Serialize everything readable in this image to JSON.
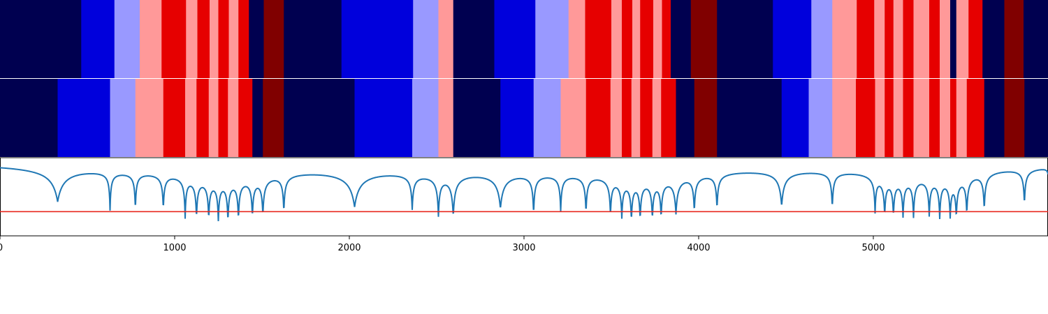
{
  "chart_data": {
    "type": "heatmap",
    "xlim": [
      0,
      6000
    ],
    "x_ticks": [
      0,
      1000,
      2000,
      3000,
      4000,
      5000
    ],
    "x_tick_labels": [
      "0",
      "1000",
      "2000",
      "3000",
      "4000",
      "5000"
    ],
    "level_colors": {
      "0": "#000050",
      "1": "#0000dc",
      "2": "#9999ff",
      "3": "#ff9999",
      "4": "#e60000",
      "5": "#800000"
    },
    "tracks": [
      {
        "segments": [
          [
            0,
            465,
            0
          ],
          [
            465,
            655,
            1
          ],
          [
            655,
            800,
            2
          ],
          [
            800,
            925,
            3
          ],
          [
            925,
            1065,
            4
          ],
          [
            1065,
            1130,
            3
          ],
          [
            1130,
            1200,
            4
          ],
          [
            1200,
            1250,
            3
          ],
          [
            1250,
            1310,
            4
          ],
          [
            1310,
            1365,
            3
          ],
          [
            1365,
            1425,
            4
          ],
          [
            1425,
            1510,
            0
          ],
          [
            1510,
            1625,
            5
          ],
          [
            1625,
            1955,
            0
          ],
          [
            1955,
            2365,
            1
          ],
          [
            2365,
            2510,
            2
          ],
          [
            2510,
            2595,
            3
          ],
          [
            2595,
            2830,
            0
          ],
          [
            2830,
            3065,
            1
          ],
          [
            3065,
            3255,
            2
          ],
          [
            3255,
            3350,
            3
          ],
          [
            3350,
            3500,
            4
          ],
          [
            3500,
            3560,
            3
          ],
          [
            3560,
            3620,
            4
          ],
          [
            3620,
            3665,
            3
          ],
          [
            3665,
            3740,
            4
          ],
          [
            3740,
            3790,
            3
          ],
          [
            3790,
            3840,
            4
          ],
          [
            3840,
            3955,
            0
          ],
          [
            3955,
            4105,
            5
          ],
          [
            4105,
            4425,
            0
          ],
          [
            4425,
            4645,
            1
          ],
          [
            4645,
            4765,
            2
          ],
          [
            4765,
            4905,
            3
          ],
          [
            4905,
            5005,
            4
          ],
          [
            5005,
            5065,
            3
          ],
          [
            5065,
            5115,
            4
          ],
          [
            5115,
            5170,
            3
          ],
          [
            5170,
            5230,
            4
          ],
          [
            5230,
            5320,
            3
          ],
          [
            5320,
            5380,
            4
          ],
          [
            5380,
            5440,
            3
          ],
          [
            5440,
            5475,
            0
          ],
          [
            5475,
            5545,
            3
          ],
          [
            5545,
            5625,
            4
          ],
          [
            5625,
            5750,
            0
          ],
          [
            5750,
            5860,
            5
          ],
          [
            5860,
            6000,
            0
          ]
        ]
      },
      {
        "segments": [
          [
            0,
            330,
            0
          ],
          [
            330,
            630,
            1
          ],
          [
            630,
            775,
            2
          ],
          [
            775,
            935,
            3
          ],
          [
            935,
            1060,
            4
          ],
          [
            1060,
            1125,
            3
          ],
          [
            1125,
            1195,
            4
          ],
          [
            1195,
            1250,
            3
          ],
          [
            1250,
            1305,
            4
          ],
          [
            1305,
            1365,
            3
          ],
          [
            1365,
            1445,
            4
          ],
          [
            1445,
            1505,
            0
          ],
          [
            1505,
            1625,
            5
          ],
          [
            1625,
            2030,
            0
          ],
          [
            2030,
            2360,
            1
          ],
          [
            2360,
            2510,
            2
          ],
          [
            2510,
            2595,
            3
          ],
          [
            2595,
            2865,
            0
          ],
          [
            2865,
            3055,
            1
          ],
          [
            3055,
            3210,
            2
          ],
          [
            3210,
            3355,
            3
          ],
          [
            3355,
            3495,
            4
          ],
          [
            3495,
            3560,
            3
          ],
          [
            3560,
            3615,
            4
          ],
          [
            3615,
            3665,
            3
          ],
          [
            3665,
            3735,
            4
          ],
          [
            3735,
            3785,
            3
          ],
          [
            3785,
            3870,
            4
          ],
          [
            3870,
            3975,
            0
          ],
          [
            3975,
            4105,
            5
          ],
          [
            4105,
            4475,
            0
          ],
          [
            4475,
            4630,
            1
          ],
          [
            4630,
            4765,
            2
          ],
          [
            4765,
            4900,
            3
          ],
          [
            4900,
            5010,
            4
          ],
          [
            5010,
            5065,
            3
          ],
          [
            5065,
            5115,
            4
          ],
          [
            5115,
            5170,
            3
          ],
          [
            5170,
            5230,
            4
          ],
          [
            5230,
            5320,
            3
          ],
          [
            5320,
            5380,
            4
          ],
          [
            5380,
            5440,
            3
          ],
          [
            5440,
            5475,
            4
          ],
          [
            5475,
            5535,
            3
          ],
          [
            5535,
            5635,
            4
          ],
          [
            5635,
            5750,
            0
          ],
          [
            5750,
            5865,
            5
          ],
          [
            5865,
            6000,
            0
          ]
        ]
      }
    ],
    "signal": {
      "color": "#1f77b4",
      "baseline": 0.98,
      "ylim": [
        0,
        1
      ],
      "dips": [
        [
          330,
          0.52,
          35
        ],
        [
          630,
          0.48,
          5
        ],
        [
          775,
          0.49,
          5
        ],
        [
          935,
          0.52,
          6
        ],
        [
          1060,
          0.45,
          5
        ],
        [
          1125,
          0.47,
          6
        ],
        [
          1195,
          0.48,
          6
        ],
        [
          1250,
          0.48,
          6
        ],
        [
          1305,
          0.46,
          6
        ],
        [
          1365,
          0.47,
          6
        ],
        [
          1445,
          0.49,
          6
        ],
        [
          1505,
          0.49,
          7
        ],
        [
          1625,
          0.49,
          6
        ],
        [
          2030,
          0.5,
          30
        ],
        [
          2360,
          0.52,
          7
        ],
        [
          2510,
          0.46,
          7
        ],
        [
          2595,
          0.44,
          10
        ],
        [
          2865,
          0.51,
          18
        ],
        [
          3055,
          0.46,
          6
        ],
        [
          3210,
          0.51,
          6
        ],
        [
          3355,
          0.49,
          6
        ],
        [
          3495,
          0.5,
          6
        ],
        [
          3560,
          0.5,
          6
        ],
        [
          3615,
          0.48,
          6
        ],
        [
          3665,
          0.49,
          6
        ],
        [
          3735,
          0.49,
          6
        ],
        [
          3785,
          0.5,
          6
        ],
        [
          3870,
          0.5,
          10
        ],
        [
          3975,
          0.51,
          6
        ],
        [
          4105,
          0.51,
          6
        ],
        [
          4475,
          0.51,
          14
        ],
        [
          4765,
          0.5,
          6
        ],
        [
          5010,
          0.51,
          5
        ],
        [
          5065,
          0.5,
          6
        ],
        [
          5115,
          0.51,
          6
        ],
        [
          5170,
          0.5,
          6
        ],
        [
          5230,
          0.48,
          6
        ],
        [
          5320,
          0.5,
          6
        ],
        [
          5380,
          0.48,
          6
        ],
        [
          5440,
          0.51,
          6
        ],
        [
          5475,
          0.5,
          6
        ],
        [
          5535,
          0.49,
          6
        ],
        [
          5635,
          0.49,
          6
        ],
        [
          5865,
          0.51,
          6
        ],
        [
          6000,
          0.9,
          6
        ]
      ],
      "threshold": 0.31,
      "threshold_color": "#e8281f"
    }
  }
}
